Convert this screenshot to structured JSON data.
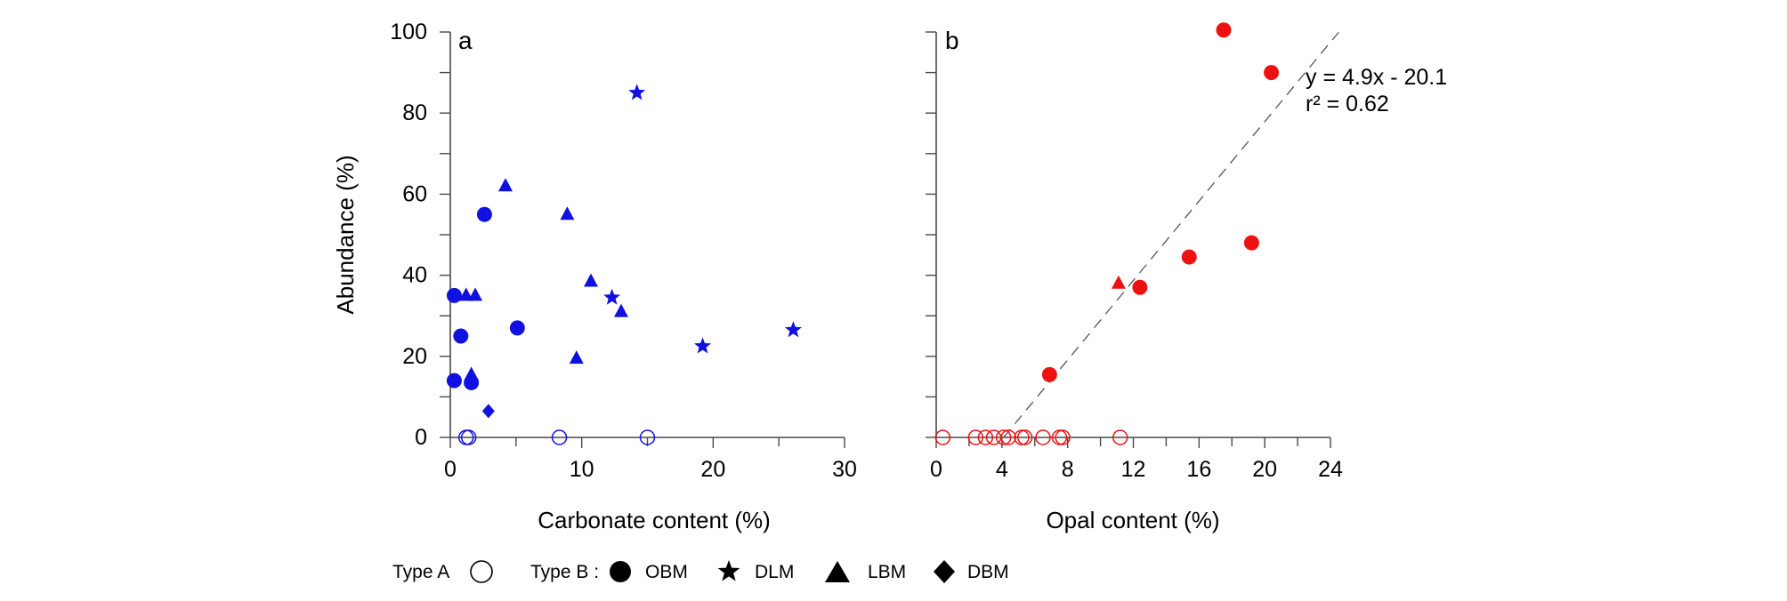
{
  "chart_data": [
    {
      "panel": "a",
      "type": "scatter",
      "xlabel": "Carbonate content (%)",
      "ylabel": "Abundance (%)",
      "xlim": [
        0,
        30
      ],
      "ylim": [
        0,
        100
      ],
      "xticks": [
        0,
        10,
        20,
        30
      ],
      "xticklabels": [
        "0",
        "10",
        "20",
        "30"
      ],
      "yticks": [
        0,
        20,
        40,
        60,
        80,
        100
      ],
      "yticklabels": [
        "0",
        "20",
        "40",
        "60",
        "80",
        "100"
      ],
      "color": "#1010e0",
      "series": [
        {
          "name": "Type A",
          "marker": "open-circle",
          "points": [
            [
              1.2,
              0
            ],
            [
              1.4,
              0
            ],
            [
              8.3,
              0
            ],
            [
              15.0,
              0
            ]
          ]
        },
        {
          "name": "OBM",
          "marker": "circle",
          "points": [
            [
              2.6,
              55
            ],
            [
              0.3,
              35
            ],
            [
              0.8,
              25
            ],
            [
              0.3,
              14
            ],
            [
              1.6,
              13.5
            ],
            [
              5.1,
              27
            ]
          ]
        },
        {
          "name": "DLM",
          "marker": "star",
          "points": [
            [
              14.2,
              85
            ],
            [
              12.3,
              34.5
            ],
            [
              19.2,
              22.5
            ],
            [
              26.1,
              26.5
            ]
          ]
        },
        {
          "name": "LBM",
          "marker": "triangle",
          "points": [
            [
              4.2,
              62
            ],
            [
              8.9,
              55
            ],
            [
              10.7,
              38.5
            ],
            [
              13.0,
              31
            ],
            [
              9.6,
              19.5
            ],
            [
              1.2,
              35
            ],
            [
              1.9,
              35
            ],
            [
              1.6,
              15.5
            ]
          ]
        },
        {
          "name": "DBM",
          "marker": "diamond",
          "points": [
            [
              2.9,
              6.5
            ]
          ]
        }
      ]
    },
    {
      "panel": "b",
      "type": "scatter",
      "xlabel": "Opal content (%)",
      "ylabel": "",
      "xlim": [
        0,
        24
      ],
      "ylim": [
        0,
        100
      ],
      "xticks": [
        0,
        4,
        8,
        12,
        16,
        20,
        24
      ],
      "xticklabels": [
        "0",
        "4",
        "8",
        "12",
        "16",
        "20",
        "24"
      ],
      "color": "#ee1111",
      "series": [
        {
          "name": "Type A",
          "marker": "open-circle",
          "points": [
            [
              0.4,
              0
            ],
            [
              2.4,
              0
            ],
            [
              3.0,
              0
            ],
            [
              3.5,
              0
            ],
            [
              4.1,
              0
            ],
            [
              4.4,
              0
            ],
            [
              5.2,
              0
            ],
            [
              5.4,
              0
            ],
            [
              6.5,
              0
            ],
            [
              7.5,
              0
            ],
            [
              7.7,
              0
            ],
            [
              11.2,
              0
            ]
          ]
        },
        {
          "name": "OBM",
          "marker": "circle",
          "points": [
            [
              17.5,
              100.5
            ],
            [
              20.4,
              90
            ],
            [
              19.2,
              48
            ],
            [
              15.4,
              44.5
            ],
            [
              12.4,
              37
            ],
            [
              6.9,
              15.5
            ]
          ]
        },
        {
          "name": "LBM",
          "marker": "triangle",
          "points": [
            [
              11.1,
              38
            ]
          ]
        }
      ],
      "fit": {
        "slope": 4.9,
        "intercept": -20.1,
        "x_range": [
          4.1,
          24.5
        ]
      },
      "annotation": {
        "equation": "y = 4.9x - 20.1",
        "r2": "r² = 0.62"
      }
    }
  ],
  "legend": {
    "type_a": "Type A",
    "type_b": "Type B :",
    "obm": "OBM",
    "dlm": "DLM",
    "lbm": "LBM",
    "dbm": "DBM"
  }
}
